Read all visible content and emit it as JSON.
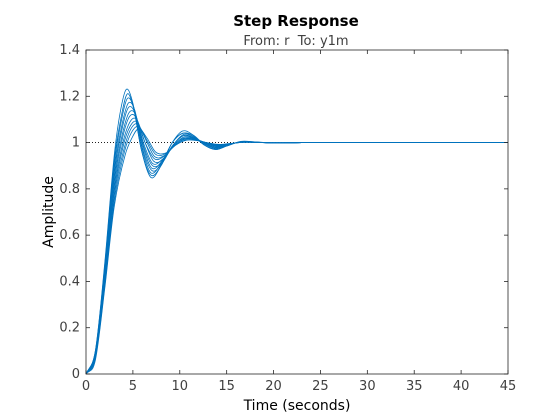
{
  "chart_data": {
    "type": "line",
    "title": "Step Response",
    "subtitle": "From: r  To: y1m",
    "xlabel": "Time (seconds)",
    "ylabel": "Amplitude",
    "xlim": [
      0,
      45
    ],
    "ylim": [
      0,
      1.4
    ],
    "xticks": [
      0,
      5,
      10,
      15,
      20,
      25,
      30,
      35,
      40,
      45
    ],
    "xtick_labels": [
      "0",
      "5",
      "10",
      "15",
      "20",
      "25",
      "30",
      "35",
      "40",
      "45"
    ],
    "yticks": [
      0,
      0.2,
      0.4,
      0.6,
      0.8,
      1,
      1.2,
      1.4
    ],
    "ytick_labels": [
      "0",
      "0.2",
      "0.4",
      "0.6",
      "0.8",
      "1",
      "1.2",
      "1.4"
    ],
    "grid": false,
    "line_color": "#0072BD",
    "reference_line": {
      "y": 1,
      "style": "dotted",
      "color": "#000000"
    },
    "series": [
      {
        "x": [
          0,
          1,
          2,
          3,
          3.6,
          4.3,
          5,
          5.9,
          6.9,
          8,
          9.2,
          10.3,
          11.5,
          12.6,
          13.8,
          15,
          16.5,
          18,
          20,
          23,
          27,
          45
        ],
        "y": [
          0,
          0.1,
          0.48,
          0.94,
          1.12,
          1.23,
          1.17,
          0.97,
          0.85,
          0.9,
          1.0,
          1.05,
          1.03,
          0.99,
          0.97,
          0.985,
          1.005,
          1.003,
          0.998,
          1.0,
          1.0,
          1.0
        ]
      },
      {
        "x": [
          0,
          1,
          2,
          3,
          3.7,
          4.4,
          5,
          5.9,
          6.9,
          8,
          9.2,
          10.3,
          11.5,
          12.6,
          13.8,
          15,
          16.5,
          18,
          20,
          23,
          27,
          45
        ],
        "y": [
          0,
          0.1,
          0.47,
          0.92,
          1.1,
          1.21,
          1.16,
          0.97,
          0.86,
          0.9,
          1.0,
          1.04,
          1.03,
          0.99,
          0.97,
          0.985,
          1.004,
          1.003,
          0.998,
          1.0,
          1.0,
          1.0
        ]
      },
      {
        "x": [
          0,
          1,
          2,
          3,
          3.7,
          4.4,
          5.1,
          6,
          6.9,
          8,
          9.2,
          10.3,
          11.5,
          12.6,
          13.8,
          15,
          16.5,
          18,
          20,
          23,
          27,
          45
        ],
        "y": [
          0,
          0.09,
          0.46,
          0.9,
          1.08,
          1.19,
          1.15,
          0.97,
          0.87,
          0.91,
          1.0,
          1.04,
          1.025,
          0.99,
          0.972,
          0.986,
          1.004,
          1.002,
          0.998,
          1.0,
          1.0,
          1.0
        ]
      },
      {
        "x": [
          0,
          1,
          2,
          3,
          3.8,
          4.5,
          5.2,
          6,
          7,
          8.1,
          9.3,
          10.4,
          11.5,
          12.7,
          13.8,
          15,
          16.5,
          18,
          20,
          23,
          27,
          45
        ],
        "y": [
          0,
          0.09,
          0.45,
          0.88,
          1.07,
          1.17,
          1.14,
          0.98,
          0.88,
          0.91,
          0.99,
          1.035,
          1.025,
          0.992,
          0.975,
          0.988,
          1.003,
          1.002,
          0.998,
          1.0,
          1.0,
          1.0
        ]
      },
      {
        "x": [
          0,
          1,
          2,
          3,
          3.8,
          4.5,
          5.2,
          6.1,
          7,
          8.1,
          9.3,
          10.4,
          11.5,
          12.7,
          13.8,
          15,
          16.5,
          18,
          20,
          23,
          27,
          45
        ],
        "y": [
          0,
          0.09,
          0.44,
          0.86,
          1.05,
          1.15,
          1.13,
          0.98,
          0.89,
          0.92,
          0.99,
          1.03,
          1.02,
          0.993,
          0.977,
          0.989,
          1.003,
          1.002,
          0.999,
          1.0,
          1.0,
          1.0
        ]
      },
      {
        "x": [
          0,
          1,
          2,
          3,
          3.9,
          4.6,
          5.3,
          6.1,
          7.1,
          8.2,
          9.3,
          10.4,
          11.6,
          12.7,
          13.9,
          15,
          16.5,
          18,
          20,
          23,
          27,
          45
        ],
        "y": [
          0,
          0.08,
          0.43,
          0.84,
          1.04,
          1.13,
          1.12,
          0.99,
          0.9,
          0.92,
          0.99,
          1.03,
          1.02,
          0.994,
          0.98,
          0.99,
          1.003,
          1.002,
          0.999,
          1.0,
          1.0,
          1.0
        ]
      },
      {
        "x": [
          0,
          1,
          2,
          3,
          3.9,
          4.6,
          5.3,
          6.2,
          7.1,
          8.2,
          9.4,
          10.5,
          11.6,
          12.8,
          13.9,
          15.1,
          16.5,
          18,
          20,
          23,
          27,
          45
        ],
        "y": [
          0,
          0.08,
          0.42,
          0.82,
          1.02,
          1.11,
          1.11,
          0.99,
          0.91,
          0.93,
          0.99,
          1.025,
          1.018,
          0.995,
          0.982,
          0.991,
          1.002,
          1.001,
          0.999,
          1.0,
          1.0,
          1.0
        ]
      },
      {
        "x": [
          0,
          1,
          2,
          3,
          4,
          4.7,
          5.4,
          6.3,
          7.2,
          8.3,
          9.4,
          10.5,
          11.7,
          12.8,
          14,
          15.1,
          16.6,
          18,
          20,
          23,
          27,
          45
        ],
        "y": [
          0,
          0.08,
          0.41,
          0.8,
          1.01,
          1.09,
          1.1,
          1.0,
          0.92,
          0.93,
          0.99,
          1.02,
          1.016,
          0.996,
          0.984,
          0.992,
          1.002,
          1.001,
          0.999,
          1.0,
          1.0,
          1.0
        ]
      },
      {
        "x": [
          0,
          1,
          2,
          3,
          4,
          4.7,
          5.4,
          6.3,
          7.3,
          8.3,
          9.5,
          10.6,
          11.7,
          12.9,
          14,
          15.2,
          16.6,
          18.1,
          20,
          23,
          27,
          45
        ],
        "y": [
          0,
          0.07,
          0.4,
          0.78,
          0.99,
          1.07,
          1.09,
          1.0,
          0.93,
          0.94,
          0.99,
          1.018,
          1.014,
          0.997,
          0.986,
          0.993,
          1.002,
          1.001,
          0.999,
          1.0,
          1.0,
          1.0
        ]
      },
      {
        "x": [
          0,
          1,
          2,
          3,
          4.1,
          4.8,
          5.5,
          6.4,
          7.3,
          8.4,
          9.5,
          10.6,
          11.8,
          12.9,
          14.1,
          15.2,
          16.7,
          18.1,
          20,
          23,
          27,
          45
        ],
        "y": [
          0,
          0.07,
          0.39,
          0.76,
          0.98,
          1.06,
          1.08,
          1.01,
          0.94,
          0.945,
          0.99,
          1.015,
          1.012,
          0.998,
          0.988,
          0.994,
          1.001,
          1.001,
          0.999,
          1.0,
          1.0,
          1.0
        ]
      },
      {
        "x": [
          0,
          1,
          2,
          3,
          4.1,
          4.8,
          5.6,
          6.5,
          7.4,
          8.4,
          9.6,
          10.7,
          11.8,
          13,
          14.1,
          15.3,
          16.7,
          18.2,
          20,
          23,
          27,
          45
        ],
        "y": [
          0,
          0.07,
          0.38,
          0.74,
          0.96,
          1.04,
          1.07,
          1.01,
          0.95,
          0.95,
          0.99,
          1.012,
          1.01,
          0.998,
          0.99,
          0.995,
          1.001,
          1.001,
          0.999,
          1.0,
          1.0,
          1.0
        ]
      },
      {
        "x": [
          0,
          1,
          2,
          3,
          4.2,
          4.9,
          5.6,
          6.5,
          7.4,
          8.5,
          9.6,
          10.7,
          11.9,
          13,
          14.2,
          15.3,
          16.8,
          18.2,
          20,
          23,
          27,
          45
        ],
        "y": [
          0,
          0.06,
          0.37,
          0.72,
          0.95,
          1.02,
          1.06,
          1.02,
          0.96,
          0.955,
          0.99,
          1.01,
          1.008,
          0.999,
          0.992,
          0.996,
          1.001,
          1.0,
          1.0,
          1.0,
          1.0,
          1.0
        ]
      }
    ]
  }
}
